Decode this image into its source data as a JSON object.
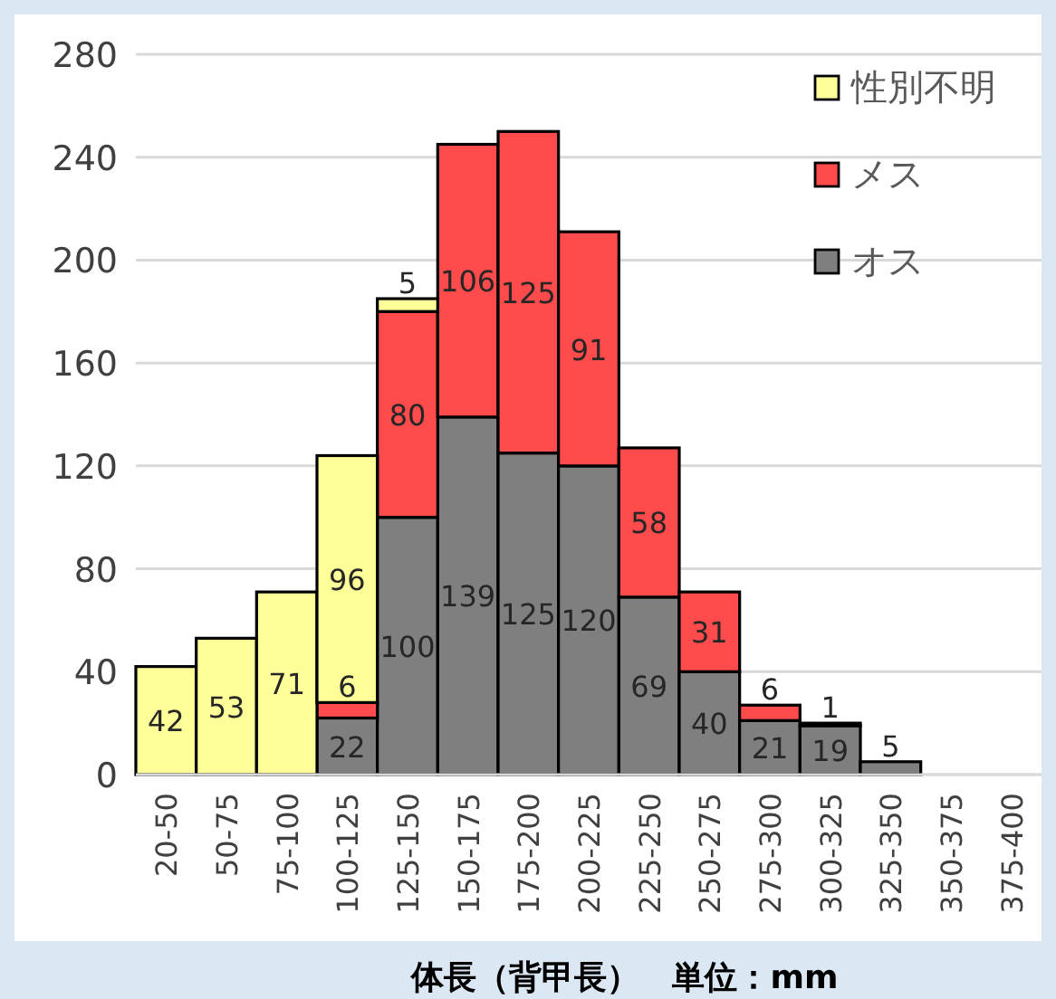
{
  "chart_data": {
    "type": "bar",
    "stacked": true,
    "xlabel": "体長（背甲長）　単位：mm",
    "categories": [
      "20-50",
      "50-75",
      "75-100",
      "100-125",
      "125-150",
      "150-175",
      "175-200",
      "200-225",
      "225-250",
      "250-275",
      "275-300",
      "300-325",
      "325-350",
      "350-375",
      "375-400"
    ],
    "series": [
      {
        "name": "オス",
        "color": "#7f7f7f",
        "values": [
          0,
          0,
          0,
          22,
          100,
          139,
          125,
          120,
          69,
          40,
          21,
          19,
          5,
          0,
          0
        ],
        "value_labels": [
          null,
          null,
          null,
          "22",
          "100",
          "139",
          "125",
          "120",
          "69",
          "40",
          "21",
          "19",
          "5",
          null,
          null
        ]
      },
      {
        "name": "メス",
        "color": "#ff4b4b",
        "values": [
          0,
          0,
          0,
          6,
          80,
          106,
          125,
          91,
          58,
          31,
          6,
          1,
          0,
          0,
          0
        ],
        "value_labels": [
          null,
          null,
          null,
          "6",
          "80",
          "106",
          "125",
          "91",
          "58",
          "31",
          "6",
          "1",
          null,
          null,
          null
        ]
      },
      {
        "name": "性別不明",
        "color": "#ffff99",
        "values": [
          42,
          53,
          71,
          96,
          5,
          0,
          0,
          0,
          0,
          0,
          0,
          0,
          0,
          0,
          0
        ],
        "value_labels": [
          "42",
          "53",
          "71",
          "96",
          "5",
          null,
          null,
          null,
          null,
          null,
          null,
          null,
          null,
          null,
          null
        ]
      }
    ],
    "ylim": [
      0,
      280
    ],
    "yticks": [
      0,
      40,
      80,
      120,
      160,
      200,
      240,
      280
    ],
    "grid": "y",
    "legend": "top right"
  }
}
